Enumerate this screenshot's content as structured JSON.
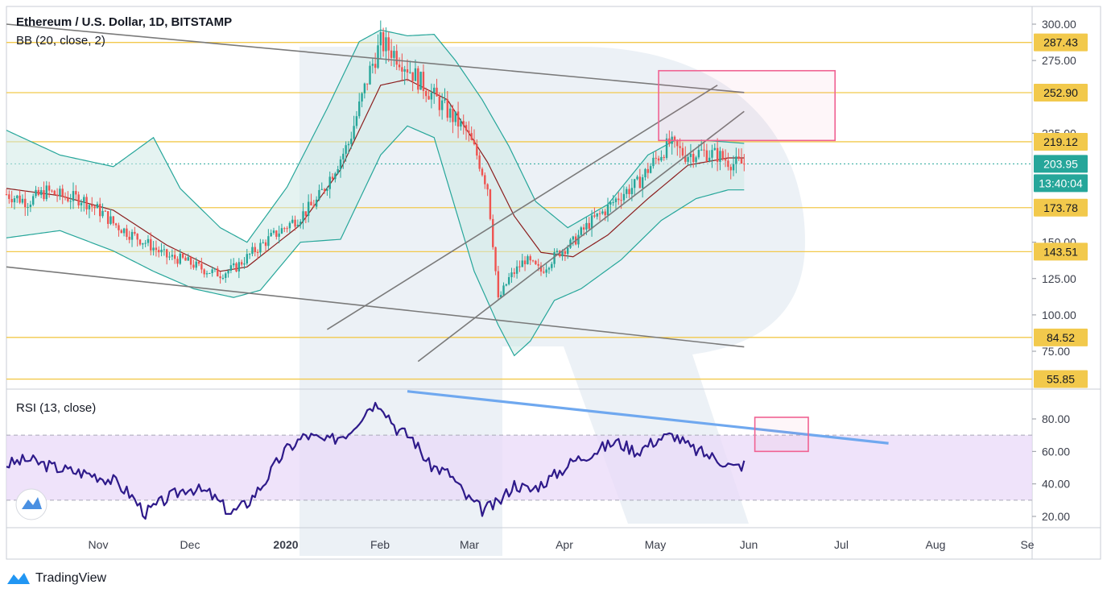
{
  "colors": {
    "up": "#26a69a",
    "down": "#ef5350",
    "level_line": "#f2c94c",
    "level_label_bg": "#f2c94c",
    "price_label_bg": "#26a69a",
    "bb_basis": "#8b1e1e",
    "bb_band": "#26a69a",
    "bb_fill": "#cfe9e5",
    "rsi_line": "#2e1a8a",
    "rsi_band_fill": "#ead9f8",
    "rsi_trend": "#6fa8ef",
    "target_box": "#f06292",
    "trend_line": "#7a7a7a",
    "watermark": "#dbe3ee",
    "text": "#131722",
    "axis_text": "#3a3e4a"
  },
  "chart_data": [
    {
      "type": "candlestick",
      "title": "Ethereum / U.S. Dollar, 1D, BITSTAMP",
      "indicator": "BB (20, close, 2)",
      "yaxis": {
        "ticks": [
          "300.00",
          "275.00",
          "225.00",
          "150.00",
          "125.00",
          "100.00",
          "75.00"
        ]
      },
      "xaxis": {
        "ticks": [
          "Nov",
          "Dec",
          "2020",
          "Feb",
          "Mar",
          "Apr",
          "May",
          "Jun",
          "Jul",
          "Aug",
          "Se"
        ]
      },
      "horizontal_levels": [
        {
          "value": 287.43,
          "label": "287.43"
        },
        {
          "value": 252.9,
          "label": "252.90"
        },
        {
          "value": 219.12,
          "label": "219.12"
        },
        {
          "value": 173.78,
          "label": "173.78"
        },
        {
          "value": 143.51,
          "label": "143.51"
        },
        {
          "value": 84.52,
          "label": "84.52"
        },
        {
          "value": 55.85,
          "label": "55.85"
        }
      ],
      "current_price": {
        "value": 203.95,
        "label": "203.95",
        "countdown": "13:40:04"
      },
      "price_path": [
        [
          0,
          183
        ],
        [
          8,
          178
        ],
        [
          15,
          185
        ],
        [
          22,
          181
        ],
        [
          28,
          180
        ],
        [
          36,
          170
        ],
        [
          40,
          163
        ],
        [
          46,
          156
        ],
        [
          52,
          150
        ],
        [
          60,
          140
        ],
        [
          66,
          138
        ],
        [
          74,
          131
        ],
        [
          80,
          128
        ],
        [
          86,
          133
        ],
        [
          92,
          143
        ],
        [
          98,
          152
        ],
        [
          104,
          160
        ],
        [
          110,
          168
        ],
        [
          116,
          178
        ],
        [
          122,
          198
        ],
        [
          128,
          218
        ],
        [
          132,
          243
        ],
        [
          136,
          268
        ],
        [
          140,
          287
        ],
        [
          144,
          282
        ],
        [
          148,
          275
        ],
        [
          154,
          262
        ],
        [
          160,
          250
        ],
        [
          166,
          238
        ],
        [
          172,
          226
        ],
        [
          176,
          210
        ],
        [
          180,
          188
        ],
        [
          182,
          150
        ],
        [
          184,
          110
        ],
        [
          188,
          125
        ],
        [
          194,
          138
        ],
        [
          200,
          130
        ],
        [
          206,
          142
        ],
        [
          212,
          150
        ],
        [
          218,
          163
        ],
        [
          224,
          172
        ],
        [
          230,
          183
        ],
        [
          236,
          190
        ],
        [
          242,
          205
        ],
        [
          248,
          218
        ],
        [
          254,
          210
        ],
        [
          260,
          212
        ],
        [
          266,
          210
        ],
        [
          272,
          204
        ],
        [
          276,
          204
        ]
      ],
      "bollinger": {
        "basis": [
          [
            0,
            187
          ],
          [
            20,
            182
          ],
          [
            40,
            172
          ],
          [
            60,
            148
          ],
          [
            80,
            130
          ],
          [
            90,
            133
          ],
          [
            110,
            162
          ],
          [
            125,
            200
          ],
          [
            140,
            258
          ],
          [
            150,
            262
          ],
          [
            165,
            248
          ],
          [
            180,
            205
          ],
          [
            190,
            168
          ],
          [
            200,
            143
          ],
          [
            212,
            140
          ],
          [
            225,
            155
          ],
          [
            240,
            180
          ],
          [
            255,
            203
          ],
          [
            270,
            208
          ],
          [
            276,
            208
          ]
        ],
        "upper": [
          [
            0,
            227
          ],
          [
            20,
            210
          ],
          [
            40,
            202
          ],
          [
            55,
            222
          ],
          [
            65,
            187
          ],
          [
            80,
            160
          ],
          [
            90,
            150
          ],
          [
            105,
            188
          ],
          [
            120,
            242
          ],
          [
            132,
            288
          ],
          [
            140,
            296
          ],
          [
            150,
            292
          ],
          [
            160,
            293
          ],
          [
            168,
            275
          ],
          [
            178,
            248
          ],
          [
            188,
            216
          ],
          [
            198,
            178
          ],
          [
            210,
            160
          ],
          [
            225,
            176
          ],
          [
            240,
            210
          ],
          [
            250,
            220
          ],
          [
            262,
            220
          ],
          [
            276,
            218
          ]
        ],
        "lower": [
          [
            0,
            153
          ],
          [
            20,
            158
          ],
          [
            40,
            144
          ],
          [
            55,
            130
          ],
          [
            70,
            118
          ],
          [
            85,
            112
          ],
          [
            95,
            117
          ],
          [
            110,
            150
          ],
          [
            125,
            152
          ],
          [
            140,
            210
          ],
          [
            150,
            230
          ],
          [
            160,
            222
          ],
          [
            175,
            130
          ],
          [
            184,
            93
          ],
          [
            190,
            72
          ],
          [
            196,
            82
          ],
          [
            205,
            110
          ],
          [
            215,
            118
          ],
          [
            230,
            138
          ],
          [
            245,
            165
          ],
          [
            258,
            180
          ],
          [
            270,
            186
          ],
          [
            276,
            186
          ]
        ]
      },
      "trend_lines": [
        {
          "name": "upper-descending",
          "from": [
            0,
            300
          ],
          "to": [
            276,
            253
          ]
        },
        {
          "name": "lower-descending",
          "from": [
            0,
            133
          ],
          "to": [
            276,
            78
          ]
        },
        {
          "name": "channel-upper",
          "from": [
            120,
            90
          ],
          "to": [
            266,
            258
          ]
        },
        {
          "name": "channel-lower",
          "from": [
            154,
            68
          ],
          "to": [
            276,
            240
          ]
        }
      ],
      "target_zone": {
        "x_range": [
          244,
          310
        ],
        "y_range": [
          220,
          268
        ]
      }
    },
    {
      "type": "line",
      "title": "RSI (13, close)",
      "yaxis": {
        "ticks": [
          "80.00",
          "60.00",
          "40.00",
          "20.00"
        ]
      },
      "band": [
        30,
        70
      ],
      "rsi_path": [
        [
          0,
          52
        ],
        [
          8,
          55
        ],
        [
          16,
          51
        ],
        [
          24,
          48
        ],
        [
          32,
          46
        ],
        [
          40,
          42
        ],
        [
          46,
          34
        ],
        [
          52,
          22
        ],
        [
          60,
          31
        ],
        [
          68,
          38
        ],
        [
          76,
          34
        ],
        [
          84,
          22
        ],
        [
          90,
          28
        ],
        [
          96,
          40
        ],
        [
          104,
          60
        ],
        [
          112,
          70
        ],
        [
          120,
          66
        ],
        [
          128,
          72
        ],
        [
          136,
          88
        ],
        [
          140,
          90
        ],
        [
          146,
          74
        ],
        [
          152,
          68
        ],
        [
          158,
          52
        ],
        [
          166,
          46
        ],
        [
          172,
          32
        ],
        [
          178,
          24
        ],
        [
          184,
          28
        ],
        [
          190,
          40
        ],
        [
          196,
          36
        ],
        [
          204,
          44
        ],
        [
          212,
          54
        ],
        [
          220,
          60
        ],
        [
          228,
          66
        ],
        [
          236,
          60
        ],
        [
          244,
          68
        ],
        [
          250,
          70
        ],
        [
          256,
          62
        ],
        [
          262,
          58
        ],
        [
          268,
          54
        ],
        [
          272,
          50
        ],
        [
          276,
          52
        ]
      ],
      "trend_line": {
        "from": [
          150,
          97
        ],
        "to": [
          330,
          65
        ]
      },
      "target_zone": {
        "x_range": [
          280,
          300
        ],
        "y_range": [
          60,
          81
        ]
      }
    }
  ],
  "brand": {
    "name": "TradingView"
  }
}
